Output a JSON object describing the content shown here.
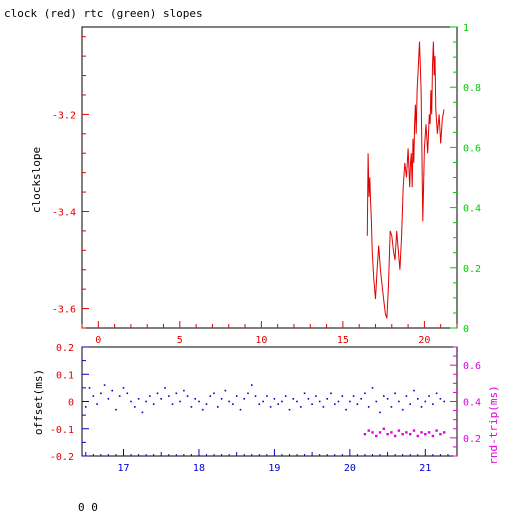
{
  "title": "clock (red) rtc (green) slopes",
  "footer_text": "0 0",
  "colors": {
    "red": "#e00000",
    "green": "#00cc00",
    "blue": "#0000cc",
    "magenta": "#e000e0",
    "black": "#000000"
  },
  "chart_data": [
    {
      "type": "line",
      "title": "clock (red) rtc (green) slopes",
      "ylabel": "clockslope",
      "xlim": [
        -1,
        22
      ],
      "ylim": [
        -3.64,
        -3.02
      ],
      "y2lim": [
        0,
        1
      ],
      "x_ticks": [
        0,
        5,
        10,
        15,
        20
      ],
      "y_ticks": [
        -3.2,
        -3.4,
        -3.6
      ],
      "y2_ticks": [
        0,
        0.2,
        0.4,
        0.6,
        0.8,
        1
      ],
      "x_tick_labels": [
        "0",
        "5",
        "10",
        "15",
        "20"
      ],
      "y_tick_labels": [
        "-3.2",
        "-3.4",
        "-3.6"
      ],
      "y2_tick_labels": [
        "0",
        "0.2",
        "0.4",
        "0.6",
        "0.8",
        "1"
      ],
      "series": [
        {
          "name": "clock",
          "x": [
            16.5,
            16.55,
            16.6,
            16.65,
            16.7,
            16.75,
            16.8,
            16.9,
            17.0,
            17.1,
            17.2,
            17.3,
            17.4,
            17.5,
            17.6,
            17.7,
            17.8,
            17.9,
            18.0,
            18.1,
            18.2,
            18.3,
            18.4,
            18.5,
            18.6,
            18.7,
            18.8,
            18.9,
            19.0,
            19.1,
            19.15,
            19.2,
            19.25,
            19.3,
            19.35,
            19.4,
            19.45,
            19.5,
            19.55,
            19.6,
            19.7,
            19.8,
            19.9,
            20.0,
            20.1,
            20.2,
            20.3,
            20.35,
            20.4,
            20.45,
            20.5,
            20.55,
            20.6,
            20.65,
            20.7,
            20.8,
            20.9,
            21.0,
            21.1,
            21.2
          ],
          "values": [
            -3.45,
            -3.28,
            -3.37,
            -3.33,
            -3.38,
            -3.42,
            -3.48,
            -3.54,
            -3.58,
            -3.52,
            -3.47,
            -3.52,
            -3.55,
            -3.58,
            -3.61,
            -3.62,
            -3.55,
            -3.44,
            -3.45,
            -3.48,
            -3.5,
            -3.44,
            -3.48,
            -3.52,
            -3.45,
            -3.35,
            -3.3,
            -3.33,
            -3.27,
            -3.35,
            -3.3,
            -3.28,
            -3.35,
            -3.25,
            -3.3,
            -3.22,
            -3.18,
            -3.24,
            -3.15,
            -3.12,
            -3.05,
            -3.15,
            -3.42,
            -3.27,
            -3.22,
            -3.28,
            -3.2,
            -3.22,
            -3.15,
            -3.2,
            -3.1,
            -3.05,
            -3.12,
            -3.08,
            -3.19,
            -3.24,
            -3.2,
            -3.26,
            -3.21,
            -3.19
          ]
        }
      ]
    },
    {
      "type": "scatter",
      "ylabel": "offset(ms)",
      "y2label": "rnd-trip(ms)",
      "xlim": [
        16.45,
        21.42
      ],
      "ylim": [
        -0.2,
        0.2
      ],
      "y2lim": [
        0.1,
        0.7
      ],
      "x_ticks": [
        17,
        18,
        19,
        20,
        21
      ],
      "y_ticks": [
        0.2,
        0.1,
        0,
        -0.1,
        -0.2
      ],
      "y2_ticks": [
        0.2,
        0.4,
        0.6
      ],
      "x_tick_labels": [
        "17",
        "18",
        "19",
        "20",
        "21"
      ],
      "y_tick_labels": [
        "0.2",
        "0.1",
        "0",
        "-0.1",
        "-0.2"
      ],
      "y2_tick_labels": [
        "0.2",
        "0.4",
        "0.6"
      ],
      "series": [
        {
          "name": "offset",
          "x": [
            16.5,
            16.55,
            16.6,
            16.65,
            16.7,
            16.75,
            16.8,
            16.85,
            16.9,
            16.95,
            17.0,
            17.05,
            17.1,
            17.15,
            17.2,
            17.25,
            17.3,
            17.35,
            17.4,
            17.45,
            17.5,
            17.55,
            17.6,
            17.65,
            17.7,
            17.75,
            17.8,
            17.85,
            17.9,
            17.95,
            18.0,
            18.05,
            18.1,
            18.15,
            18.2,
            18.25,
            18.3,
            18.35,
            18.4,
            18.45,
            18.5,
            18.55,
            18.6,
            18.65,
            18.7,
            18.75,
            18.8,
            18.85,
            18.9,
            18.95,
            19.0,
            19.05,
            19.1,
            19.15,
            19.2,
            19.25,
            19.3,
            19.35,
            19.4,
            19.45,
            19.5,
            19.55,
            19.6,
            19.65,
            19.7,
            19.75,
            19.8,
            19.85,
            19.9,
            19.95,
            20.0,
            20.05,
            20.1,
            20.15,
            20.2,
            20.25,
            20.3,
            20.35,
            20.4,
            20.45,
            20.5,
            20.55,
            20.6,
            20.65,
            20.7,
            20.75,
            20.8,
            20.85,
            20.9,
            20.95,
            21.0,
            21.05,
            21.1,
            21.15,
            21.2,
            21.25
          ],
          "values": [
            -0.02,
            0.05,
            0.02,
            -0.01,
            0.03,
            0.06,
            0.01,
            0.04,
            -0.03,
            0.02,
            0.05,
            0.03,
            0.0,
            -0.02,
            0.01,
            -0.04,
            0.0,
            0.02,
            -0.01,
            0.03,
            0.01,
            0.05,
            0.02,
            -0.01,
            0.03,
            0.0,
            0.04,
            0.02,
            -0.02,
            0.01,
            0.0,
            -0.03,
            -0.01,
            0.02,
            0.03,
            -0.02,
            0.01,
            0.04,
            0.0,
            -0.01,
            0.02,
            -0.03,
            0.01,
            0.03,
            0.06,
            0.02,
            -0.01,
            0.0,
            0.02,
            -0.02,
            0.01,
            -0.01,
            0.0,
            0.02,
            -0.03,
            0.01,
            0.0,
            -0.02,
            0.03,
            0.01,
            -0.01,
            0.02,
            0.0,
            -0.02,
            0.01,
            0.03,
            -0.01,
            0.0,
            0.02,
            -0.03,
            0.0,
            0.02,
            -0.01,
            0.01,
            0.03,
            -0.02,
            0.05,
            0.0,
            -0.04,
            0.02,
            0.01,
            -0.02,
            0.03,
            0.0,
            -0.03,
            0.02,
            -0.01,
            0.04,
            0.01,
            -0.02,
            0.0,
            0.02,
            -0.01,
            0.03,
            0.01,
            0.0
          ]
        },
        {
          "name": "rnd-trip",
          "x": [
            20.2,
            20.25,
            20.3,
            20.35,
            20.4,
            20.45,
            20.5,
            20.55,
            20.6,
            20.65,
            20.7,
            20.75,
            20.8,
            20.85,
            20.9,
            20.95,
            21.0,
            21.05,
            21.1,
            21.15,
            21.2,
            21.25
          ],
          "values": [
            0.22,
            0.24,
            0.23,
            0.21,
            0.23,
            0.25,
            0.22,
            0.23,
            0.21,
            0.24,
            0.22,
            0.23,
            0.22,
            0.24,
            0.21,
            0.23,
            0.22,
            0.23,
            0.21,
            0.24,
            0.22,
            0.23
          ]
        }
      ]
    }
  ]
}
